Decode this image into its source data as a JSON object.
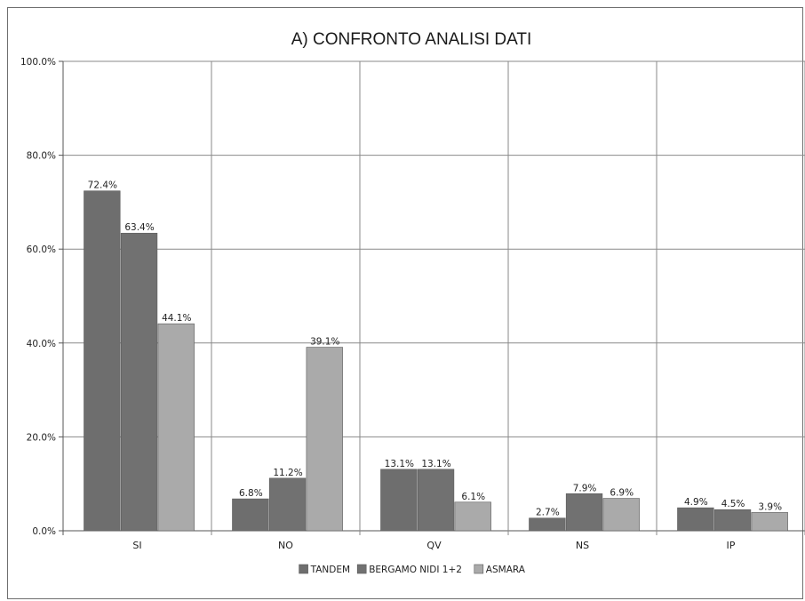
{
  "chart_data": {
    "type": "bar",
    "title": "A) CONFRONTO ANALISI DATI",
    "categories": [
      "SI",
      "NO",
      "QV",
      "NS",
      "IP"
    ],
    "series": [
      {
        "name": "TANDEM",
        "values": [
          72.4,
          6.8,
          13.1,
          2.7,
          4.9
        ],
        "labels": [
          "72.4%",
          "6.8%",
          "13.1%",
          "2.7%",
          "4.9%"
        ],
        "color": "#6e6e6e"
      },
      {
        "name": "BERGAMO NIDI 1+2",
        "values": [
          63.4,
          11.2,
          13.1,
          7.9,
          4.5
        ],
        "labels": [
          "63.4%",
          "11.2%",
          "13.1%",
          "7.9%",
          "4.5%"
        ],
        "color": "#717171"
      },
      {
        "name": "ASMARA",
        "values": [
          44.1,
          39.1,
          6.1,
          6.9,
          3.9
        ],
        "labels": [
          "44.1%",
          "39.1%",
          "6.1%",
          "6.9%",
          "3.9%"
        ],
        "color": "#aaaaaa"
      }
    ],
    "yticks": [
      "0.0%",
      "20.0%",
      "40.0%",
      "60.0%",
      "80.0%",
      "100.0%"
    ],
    "ylim": [
      0,
      100
    ],
    "grid": true,
    "legend_position": "bottom"
  }
}
